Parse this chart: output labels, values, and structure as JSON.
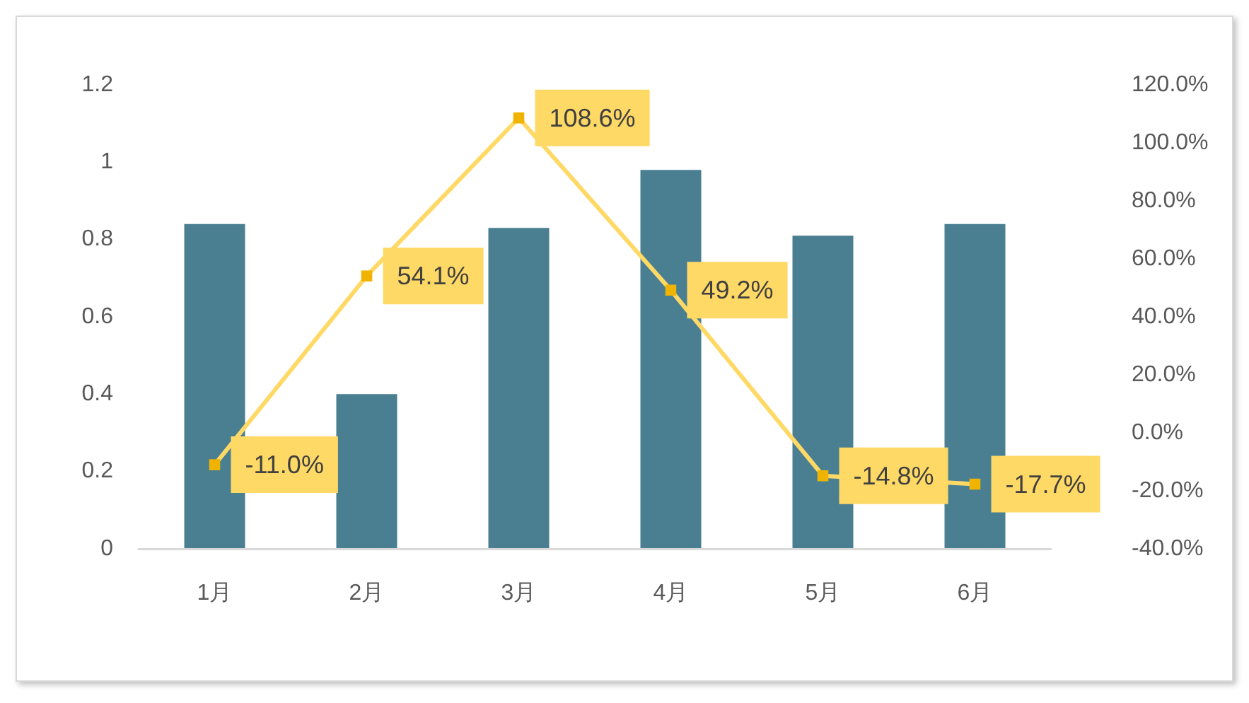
{
  "chart_data": {
    "type": "bar",
    "categories": [
      "1月",
      "2月",
      "3月",
      "4月",
      "5月",
      "6月"
    ],
    "series": [
      {
        "color": "#4a7f92",
        "values": [
          0.84,
          0.4,
          0.83,
          0.98,
          0.81,
          0.84
        ]
      },
      {
        "type": "line",
        "axis": "y2",
        "color": "#ffd966",
        "colors": [
          "#f0b400",
          "#f0b400",
          "#f0b400",
          "#f0b400",
          "#f0b400",
          "#f0b400"
        ],
        "marker": "square",
        "values": [
          -11.0,
          54.1,
          108.6,
          49.2,
          -14.8,
          -17.7
        ],
        "value_labels": [
          "-11.0%",
          "54.1%",
          "108.6%",
          "49.2%",
          "-14.8%",
          "-17.7%"
        ]
      }
    ],
    "ylim": [
      0,
      1.2
    ],
    "yticks": [
      0,
      0.2,
      0.4,
      0.6,
      0.8,
      1,
      1.2
    ],
    "y2lim": [
      -40,
      120
    ],
    "y2ticks": [
      {
        "value": -40,
        "label": "-40.0%"
      },
      {
        "value": -20,
        "label": "-20.0%"
      },
      {
        "value": 0,
        "label": "0.0%"
      },
      {
        "value": 20,
        "label": "20.0%"
      },
      {
        "value": 40,
        "label": "40.0%"
      },
      {
        "value": 60,
        "label": "60.0%"
      },
      {
        "value": 80,
        "label": "80.0%"
      },
      {
        "value": 100,
        "label": "100.0%"
      },
      {
        "value": 120,
        "label": "120.0%"
      }
    ]
  }
}
